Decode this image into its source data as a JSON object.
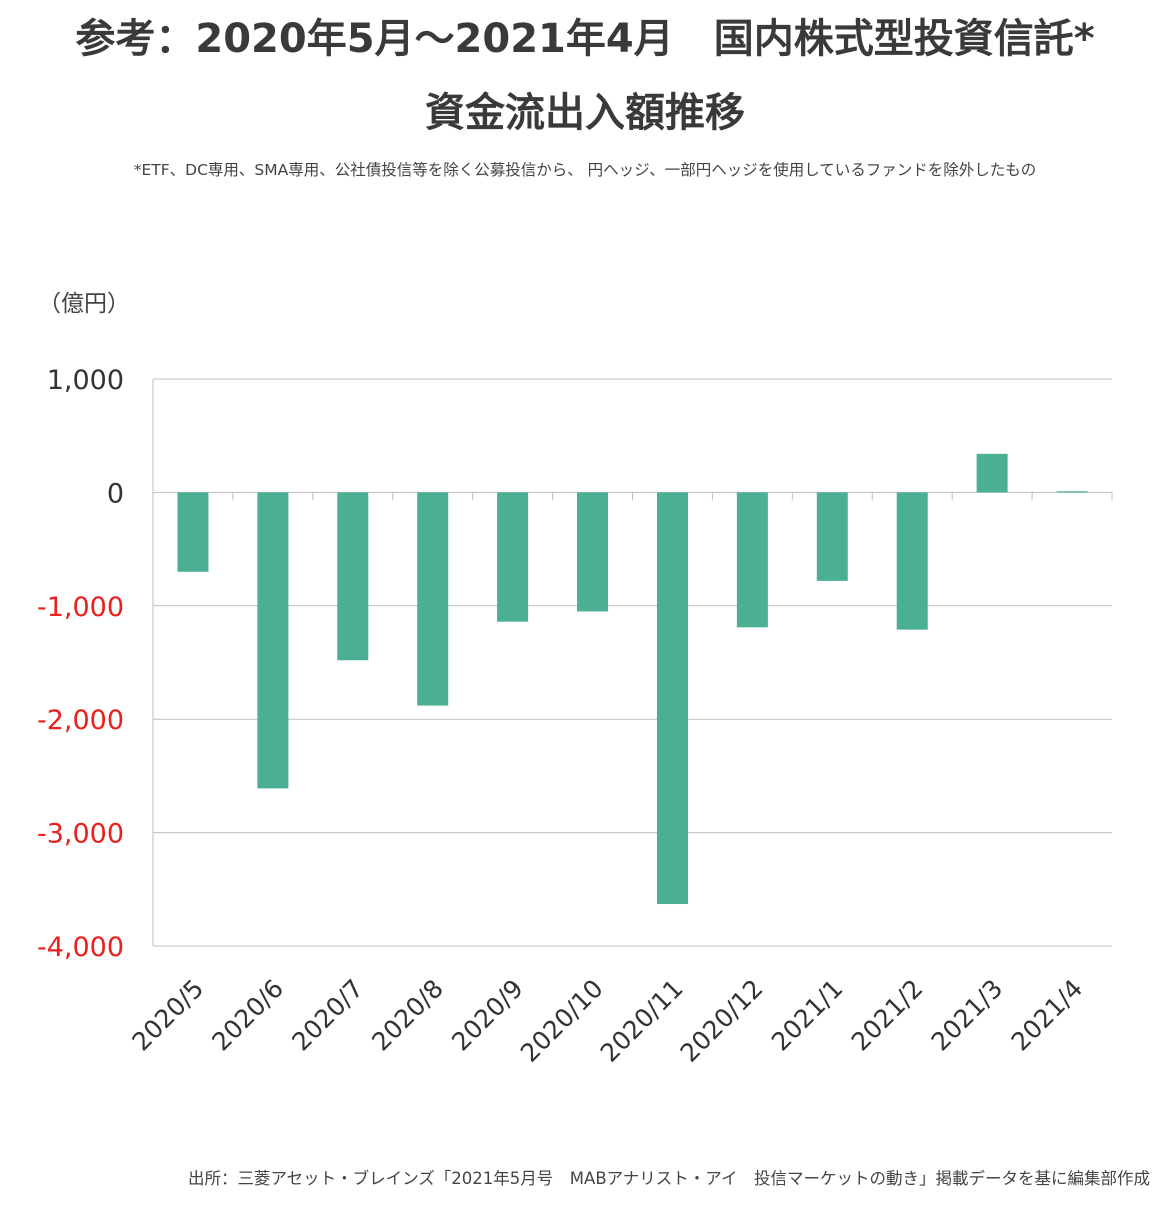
{
  "titles": {
    "line1": "参考：2020年5月〜2021年4月　国内株式型投資信託*",
    "line2": "資金流出入額推移",
    "note": "*ETF、DC専用、SMA専用、公社債投信等を除く公募投信から、 円ヘッジ、一部円ヘッジを使用しているファンドを除外したもの"
  },
  "source": "出所：三菱アセット・ブレインズ「2021年5月号　MABアナリスト・アイ　投信マーケットの動き」掲載データを基に編集部作成",
  "colors": {
    "bar": "#4aaf93",
    "negative_tick": "#e8201e",
    "positive_tick": "#333333",
    "grid": "#bfbfbf"
  },
  "chart_data": {
    "type": "bar",
    "unit_label": "（億円）",
    "categories": [
      "2020/5",
      "2020/6",
      "2020/7",
      "2020/8",
      "2020/9",
      "2020/10",
      "2020/11",
      "2020/12",
      "2021/1",
      "2021/2",
      "2021/3",
      "2021/4"
    ],
    "values": [
      -700,
      -2610,
      -1480,
      -1880,
      -1140,
      -1050,
      -3630,
      -1190,
      -780,
      -1210,
      340,
      10
    ],
    "ylim": [
      -4000,
      1000
    ],
    "yticks": [
      1000,
      0,
      -1000,
      -2000,
      -3000,
      -4000
    ],
    "ytick_labels": [
      "1,000",
      "0",
      "-1,000",
      "-2,000",
      "-3,000",
      "-4,000"
    ],
    "grid": true,
    "negative_ticks_colored": true
  }
}
